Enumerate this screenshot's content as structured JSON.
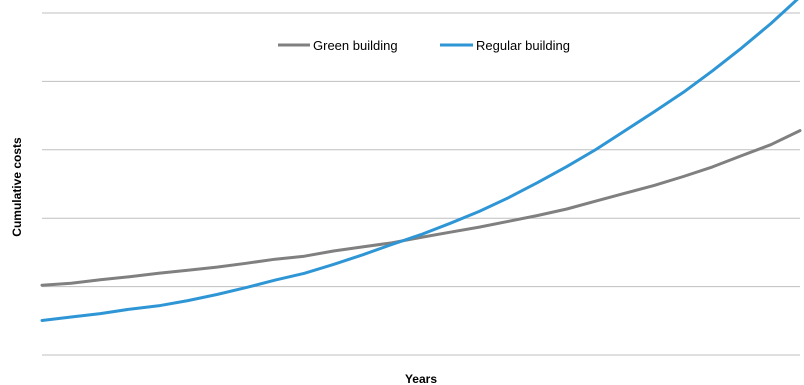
{
  "chart_data": {
    "type": "line",
    "title": "",
    "xlabel": "Years",
    "ylabel": "Cumulative costs",
    "x": [
      0,
      1,
      2,
      3,
      4,
      5,
      6,
      7,
      8,
      9,
      10,
      11,
      12,
      13,
      14,
      15,
      16,
      17,
      18,
      19,
      20,
      21,
      22,
      23,
      24,
      25,
      26
    ],
    "ylim": [
      0,
      100
    ],
    "grid": true,
    "gridlines": 6,
    "legend_position": "top",
    "series": [
      {
        "name": "Green building",
        "color": "#808080",
        "values": [
          20.4,
          21.0,
          22.0,
          22.9,
          23.9,
          24.8,
          25.7,
          26.8,
          28.0,
          28.9,
          30.4,
          31.6,
          32.8,
          34.4,
          35.9,
          37.4,
          39.1,
          40.8,
          42.7,
          45.0,
          47.3,
          49.6,
          52.2,
          55.0,
          58.3,
          61.5,
          65.6
        ]
      },
      {
        "name": "Regular building",
        "color": "#2f96d6",
        "values": [
          10.1,
          11.1,
          12.1,
          13.4,
          14.4,
          15.9,
          17.7,
          19.7,
          21.9,
          23.9,
          26.5,
          29.3,
          32.3,
          35.2,
          38.5,
          42.0,
          46.0,
          50.4,
          55.1,
          60.1,
          65.6,
          71.1,
          76.8,
          83.1,
          89.8,
          96.9,
          104.7
        ]
      }
    ]
  }
}
